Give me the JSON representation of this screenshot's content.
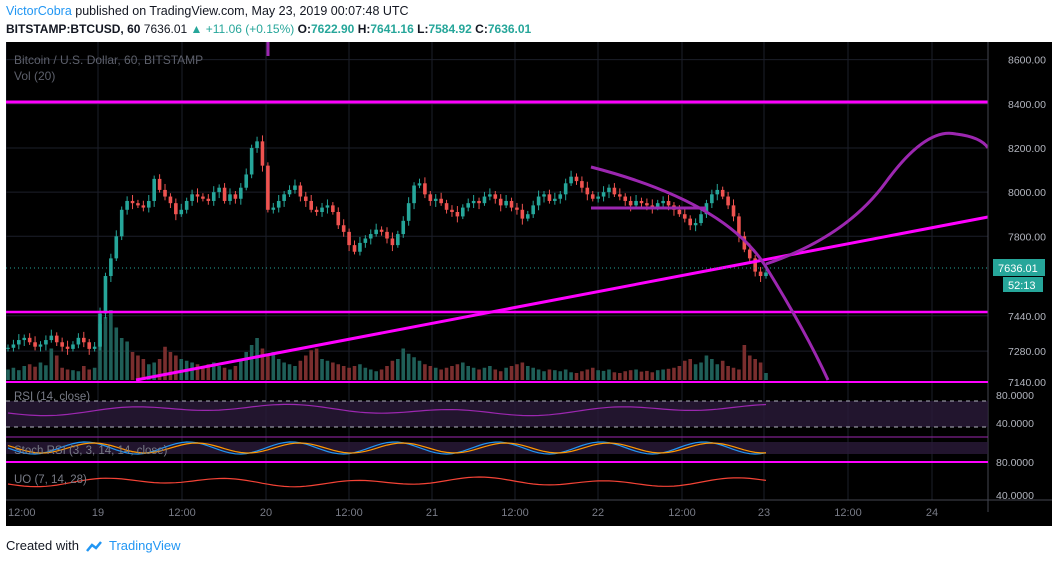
{
  "header": {
    "author": "VictorCobra",
    "published": "published on TradingView.com, May 23, 2019 00:07:48 UTC",
    "symbol": "BITSTAMP:BTCUSD, 60",
    "last": "7636.01",
    "change": "+11.06 (+0.15%)",
    "o_label": "O:",
    "o": "7622.90",
    "h_label": "H:",
    "h": "7641.16",
    "l_label": "L:",
    "l": "7584.92",
    "c_label": "C:",
    "c": "7636.01"
  },
  "footer": {
    "created_with": "Created with",
    "brand": "TradingView"
  },
  "chart_data": {
    "type": "candlestick",
    "title": "Bitcoin / U.S. Dollar, 60, BITSTAMP",
    "volume_label": "Vol (20)",
    "price_axis": {
      "min": 7140,
      "max": 8680,
      "ticks": [
        "8600.00",
        "8400.00",
        "8200.00",
        "8000.00",
        "7800.00",
        "7440.00",
        "7280.00",
        "7140.00"
      ]
    },
    "time_labels": [
      "12:00",
      "19",
      "12:00",
      "20",
      "12:00",
      "21",
      "12:00",
      "22",
      "12:00",
      "23",
      "12:00",
      "24"
    ],
    "last_price": "7636.01",
    "countdown": "52:13",
    "closes": [
      7295,
      7310,
      7330,
      7340,
      7320,
      7300,
      7310,
      7330,
      7350,
      7320,
      7300,
      7290,
      7310,
      7340,
      7320,
      7290,
      7300,
      7450,
      7620,
      7700,
      7800,
      7920,
      7960,
      7950,
      7940,
      7930,
      7960,
      8060,
      8010,
      7980,
      7950,
      7900,
      7920,
      7960,
      7990,
      7980,
      7970,
      7960,
      8000,
      8020,
      7960,
      7990,
      7970,
      8020,
      8080,
      8200,
      8230,
      8120,
      7920,
      7930,
      7960,
      7990,
      8010,
      8030,
      7980,
      7960,
      7920,
      7910,
      7930,
      7940,
      7910,
      7850,
      7820,
      7760,
      7730,
      7770,
      7790,
      7810,
      7830,
      7820,
      7790,
      7760,
      7810,
      7870,
      7950,
      8030,
      8040,
      7990,
      7960,
      7970,
      7950,
      7920,
      7910,
      7890,
      7930,
      7950,
      7960,
      7950,
      7980,
      7990,
      7970,
      7940,
      7960,
      7930,
      7920,
      7880,
      7900,
      7940,
      7980,
      7990,
      7960,
      7970,
      7990,
      8040,
      8070,
      8050,
      8020,
      7990,
      7970,
      7980,
      8000,
      8020,
      7990,
      7980,
      7960,
      7940,
      7960,
      7950,
      7940,
      7930,
      7950,
      7960,
      7940,
      7920,
      7900,
      7880,
      7850,
      7860,
      7900,
      7950,
      7990,
      8010,
      7980,
      7940,
      7890,
      7800,
      7740,
      7700,
      7640,
      7620,
      7636
    ],
    "volumes": [
      30,
      35,
      28,
      40,
      45,
      38,
      50,
      42,
      90,
      70,
      35,
      30,
      28,
      25,
      40,
      30,
      35,
      160,
      180,
      200,
      150,
      120,
      110,
      80,
      70,
      60,
      45,
      50,
      60,
      95,
      80,
      70,
      60,
      55,
      50,
      45,
      40,
      45,
      50,
      40,
      35,
      30,
      40,
      55,
      80,
      100,
      120,
      90,
      70,
      80,
      60,
      50,
      45,
      40,
      55,
      70,
      85,
      90,
      60,
      55,
      50,
      45,
      40,
      35,
      40,
      45,
      35,
      30,
      25,
      30,
      40,
      55,
      60,
      90,
      75,
      65,
      55,
      45,
      40,
      35,
      30,
      35,
      40,
      45,
      50,
      40,
      35,
      30,
      35,
      40,
      30,
      25,
      35,
      40,
      45,
      50,
      40,
      35,
      30,
      25,
      30,
      28,
      25,
      30,
      22,
      20,
      25,
      30,
      35,
      28,
      26,
      30,
      22,
      20,
      25,
      28,
      30,
      24,
      26,
      22,
      28,
      30,
      32,
      35,
      40,
      55,
      60,
      45,
      50,
      70,
      60,
      45,
      55,
      40,
      35,
      30,
      100,
      70,
      60,
      50,
      20
    ],
    "indicators": [
      {
        "name": "RSI (14, close)",
        "ticks": [
          "80.0000",
          "40.0000"
        ]
      },
      {
        "name": "Stoch RSI (3, 3, 14, 14, close)",
        "ticks": [
          "80.0000"
        ]
      },
      {
        "name": "UO (7, 14, 28)",
        "ticks": [
          "80.0000",
          "40.0000"
        ]
      }
    ],
    "colors": {
      "up": "#26a69a",
      "down": "#ef5350",
      "trendline": "#ff00ff",
      "arc": "#9c27b0",
      "background": "#000000"
    }
  }
}
